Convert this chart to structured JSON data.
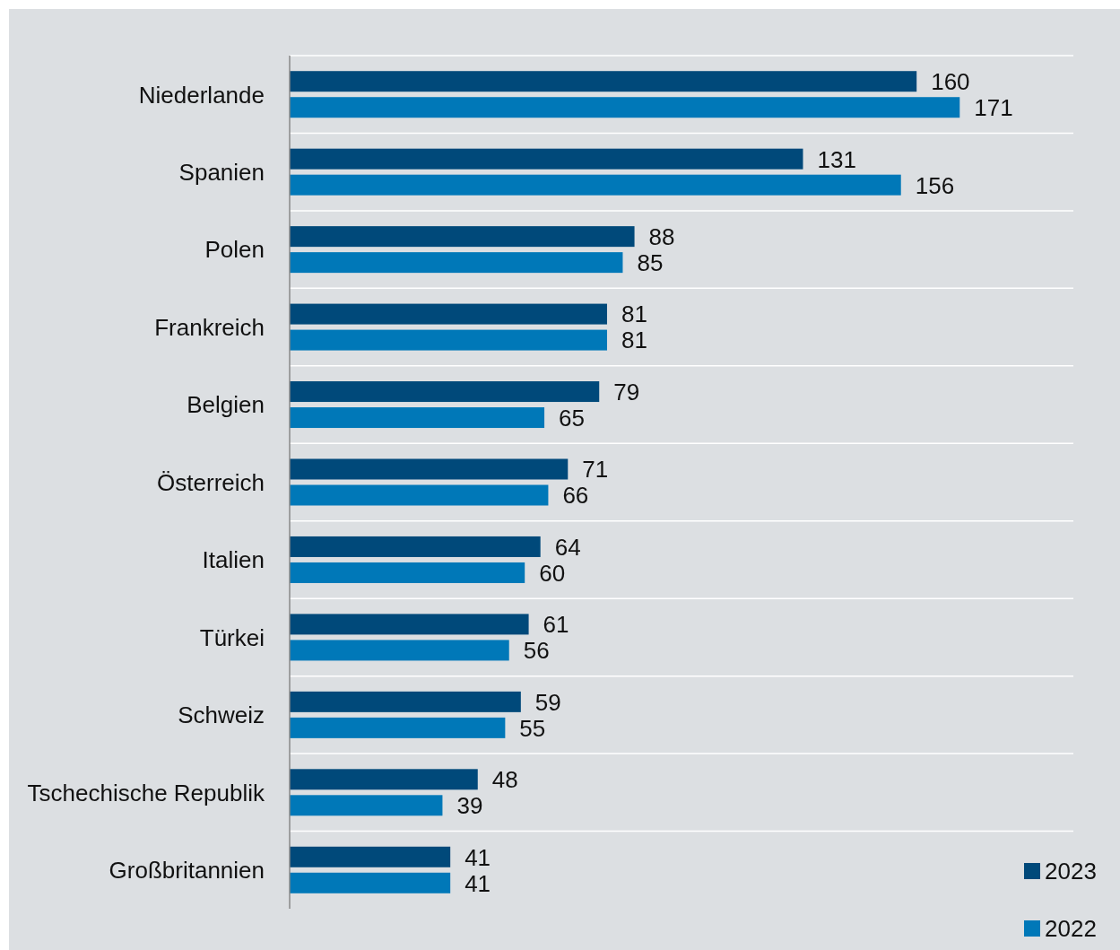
{
  "chart_data": {
    "type": "bar",
    "orientation": "horizontal",
    "categories": [
      "Niederlande",
      "Spanien",
      "Polen",
      "Frankreich",
      "Belgien",
      "Österreich",
      "Italien",
      "Türkei",
      "Schweiz",
      "Tschechische Republik",
      "Großbritannien"
    ],
    "series": [
      {
        "name": "2023",
        "color": "#00497a",
        "values": [
          160,
          131,
          88,
          81,
          79,
          71,
          64,
          61,
          59,
          48,
          41
        ]
      },
      {
        "name": "2022",
        "color": "#0078b8",
        "values": [
          171,
          156,
          85,
          81,
          65,
          66,
          60,
          56,
          55,
          39,
          41
        ]
      }
    ],
    "xlim": [
      0,
      200
    ],
    "tick_labels": "y",
    "data_labels": true,
    "grid": true,
    "legend": "bottom right"
  }
}
